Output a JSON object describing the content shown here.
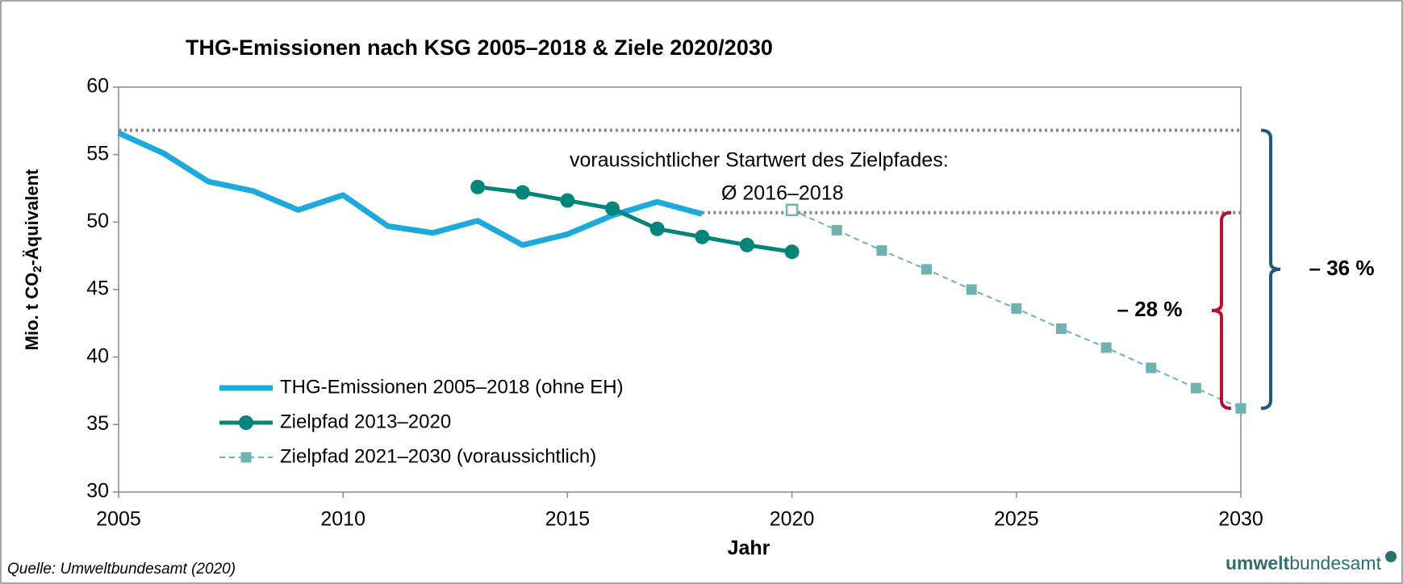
{
  "chart_data": {
    "type": "line",
    "title": "THG-Emissionen nach KSG 2005–2018 & Ziele 2020/2030",
    "ylabel": [
      "Mio. t CO",
      "2",
      "-Äquivalent"
    ],
    "xlabel": "Jahr",
    "xlim": [
      2005,
      2030
    ],
    "xticks": [
      2005,
      2010,
      2015,
      2020,
      2025,
      2030
    ],
    "ylim": [
      30,
      60
    ],
    "yticks": [
      30,
      35,
      40,
      45,
      50,
      55,
      60
    ],
    "series": [
      {
        "name": "THG-Emissionen 2005–2018 (ohne EH)",
        "color": "#1ba9de",
        "marker": "none",
        "dashed": false,
        "x": [
          2005,
          2006,
          2007,
          2008,
          2009,
          2010,
          2011,
          2012,
          2013,
          2014,
          2015,
          2016,
          2017,
          2018
        ],
        "values": [
          56.6,
          55.1,
          53.0,
          52.3,
          50.9,
          52.0,
          49.7,
          49.2,
          50.1,
          48.3,
          49.1,
          50.5,
          51.5,
          50.6
        ]
      },
      {
        "name": "Zielpfad 2013–2020",
        "color": "#00857a",
        "marker": "circle",
        "dashed": false,
        "x": [
          2013,
          2014,
          2015,
          2016,
          2017,
          2018,
          2019,
          2020
        ],
        "values": [
          52.6,
          52.2,
          51.6,
          51.0,
          49.5,
          48.9,
          48.3,
          47.8
        ]
      },
      {
        "name": "Zielpfad 2021–2030 (voraussichtlich)",
        "color": "#6fb3b0",
        "marker": "square",
        "dashed": true,
        "hollow_first": true,
        "x": [
          2020,
          2021,
          2022,
          2023,
          2024,
          2025,
          2026,
          2027,
          2028,
          2029,
          2030
        ],
        "values": [
          50.9,
          49.4,
          47.9,
          46.5,
          45.0,
          43.6,
          42.1,
          40.7,
          39.2,
          37.7,
          36.2
        ]
      }
    ],
    "reference_lines": [
      {
        "value": 56.8,
        "x": [
          2005,
          2030
        ]
      },
      {
        "value": 50.7,
        "x": [
          2018,
          2030
        ]
      }
    ],
    "annotations": [
      "voraussichtlicher Startwert des Zielpfades:",
      "Ø 2016–2018"
    ],
    "brackets": [
      {
        "label": "– 28 %",
        "color": "#b5122e"
      },
      {
        "label": "– 36 %",
        "color": "#1e5a80"
      }
    ],
    "source": "Quelle: Umweltbundesamt (2020)",
    "logo": [
      "umwelt",
      "bundesamt"
    ]
  }
}
